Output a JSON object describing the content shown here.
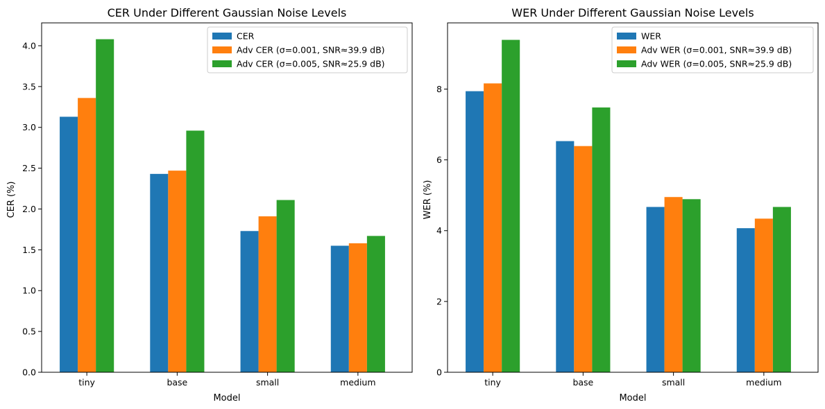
{
  "chart_data": [
    {
      "type": "bar",
      "title": "CER Under Different Gaussian Noise Levels",
      "xlabel": "Model",
      "ylabel": "CER (%)",
      "categories": [
        "tiny",
        "base",
        "small",
        "medium"
      ],
      "series": [
        {
          "name": "CER",
          "color": "#1f77b4",
          "values": [
            3.13,
            2.43,
            1.73,
            1.55
          ]
        },
        {
          "name": "Adv CER (σ=0.001, SNR≈39.9 dB)",
          "color": "#ff7f0e",
          "values": [
            3.36,
            2.47,
            1.91,
            1.58
          ]
        },
        {
          "name": "Adv CER (σ=0.005, SNR≈25.9 dB)",
          "color": "#2ca02c",
          "values": [
            4.08,
            2.96,
            2.11,
            1.67
          ]
        }
      ],
      "ylim": [
        0,
        4.28
      ],
      "yticks": [
        "0.0",
        "0.5",
        "1.0",
        "1.5",
        "2.0",
        "2.5",
        "3.0",
        "3.5",
        "4.0"
      ],
      "legend": "top-right",
      "grid": false
    },
    {
      "type": "bar",
      "title": "WER Under Different Gaussian Noise Levels",
      "xlabel": "Model",
      "ylabel": "WER (%)",
      "categories": [
        "tiny",
        "base",
        "small",
        "medium"
      ],
      "series": [
        {
          "name": "WER",
          "color": "#1f77b4",
          "values": [
            7.94,
            6.53,
            4.67,
            4.07
          ]
        },
        {
          "name": "Adv WER (σ=0.001, SNR≈39.9 dB)",
          "color": "#ff7f0e",
          "values": [
            8.16,
            6.39,
            4.95,
            4.34
          ]
        },
        {
          "name": "Adv WER (σ=0.005, SNR≈25.9 dB)",
          "color": "#2ca02c",
          "values": [
            9.39,
            7.48,
            4.89,
            4.67
          ]
        }
      ],
      "ylim": [
        0,
        9.87
      ],
      "yticks": [
        "0",
        "2",
        "4",
        "6",
        "8"
      ],
      "legend": "top-right",
      "grid": false
    }
  ]
}
